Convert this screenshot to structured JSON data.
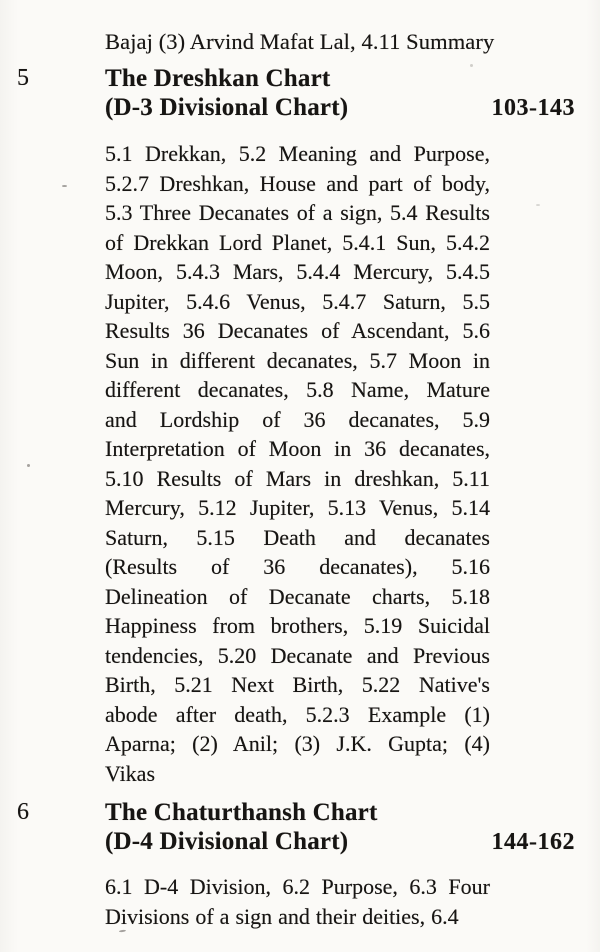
{
  "colors": {
    "paper": "#fbfaf7",
    "ink": "#171513"
  },
  "page": {
    "continuation_line": "Bajaj (3) Arvind Mafat Lal, 4.11 Summary",
    "entries": [
      {
        "number": "5",
        "title_line1": "The Dreshkan Chart",
        "title_line2": "(D-3 Divisional Chart)",
        "page_range": "103-143",
        "body_lines": [
          "5.1 Drekkan, 5.2 Meaning and Purpose,",
          "5.2.7 Dreshkan, House and part of body,",
          "5.3 Three Decanates of a sign, 5.4 Results",
          "of Drekkan Lord Planet, 5.4.1 Sun, 5.4.2",
          "Moon, 5.4.3 Mars, 5.4.4 Mercury, 5.4.5",
          "Jupiter, 5.4.6 Venus, 5.4.7 Saturn, 5.5",
          "Results 36 Decanates of Ascendant, 5.6",
          "Sun in different decanates, 5.7 Moon in",
          "different decanates, 5.8 Name, Mature",
          "and Lordship of 36 decanates, 5.9",
          "Interpretation of Moon in 36 decanates,",
          "5.10 Results of Mars in dreshkan, 5.11",
          "Mercury, 5.12 Jupiter, 5.13 Venus, 5.14",
          "Saturn, 5.15 Death and decanates",
          "(Results of 36 decanates), 5.16",
          "Delineation of Decanate charts, 5.18",
          "Happiness from brothers, 5.19 Suicidal",
          "tendencies, 5.20 Decanate and Previous",
          "Birth, 5.21 Next Birth, 5.22 Native's",
          "abode after death, 5.2.3 Example (1)",
          "Aparna; (2) Anil; (3) J.K. Gupta; (4)",
          "Vikas"
        ]
      },
      {
        "number": "6",
        "title_line1": "The Chaturthansh Chart",
        "title_line2": "(D-4 Divisional Chart)",
        "page_range": "144-162",
        "body_lines": [
          "6.1 D-4 Division, 6.2 Purpose, 6.3 Four",
          "Divisions of a sign and their deities, 6.4"
        ]
      }
    ]
  }
}
